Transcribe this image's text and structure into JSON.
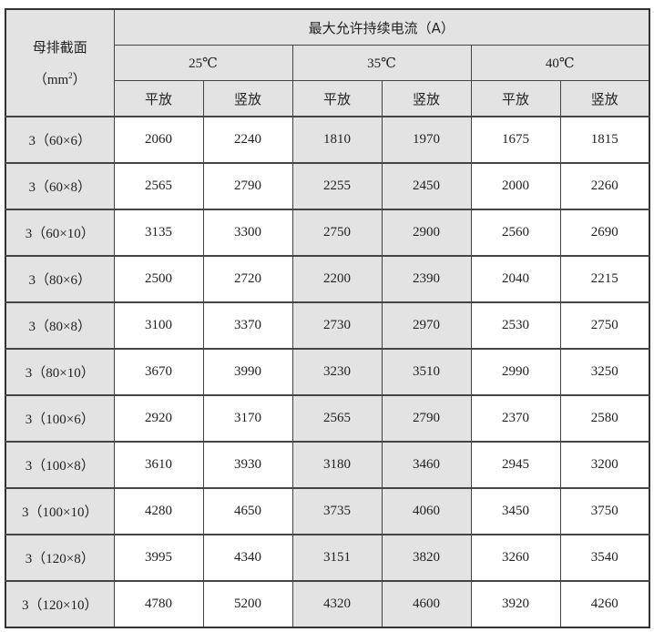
{
  "header": {
    "section_label": "母排截面",
    "section_unit_prefix": "（mm",
    "section_unit_sup": "2",
    "section_unit_suffix": "）",
    "main_title": "最大允许持续电流（A）",
    "temperatures": [
      "25℃",
      "35℃",
      "40℃"
    ],
    "orientations": [
      "平放",
      "竖放",
      "平放",
      "竖放",
      "平放",
      "竖放"
    ]
  },
  "shading_color": "#e3e3e3",
  "rows": [
    {
      "section": "3（60×6）",
      "values": [
        "2060",
        "2240",
        "1810",
        "1970",
        "1675",
        "1815"
      ]
    },
    {
      "section": "3（60×8）",
      "values": [
        "2565",
        "2790",
        "2255",
        "2450",
        "2000",
        "2260"
      ]
    },
    {
      "section": "3（60×10）",
      "values": [
        "3135",
        "3300",
        "2750",
        "2900",
        "2560",
        "2690"
      ]
    },
    {
      "section": "3（80×6）",
      "values": [
        "2500",
        "2720",
        "2200",
        "2390",
        "2040",
        "2215"
      ]
    },
    {
      "section": "3（80×8）",
      "values": [
        "3100",
        "3370",
        "2730",
        "2970",
        "2530",
        "2750"
      ]
    },
    {
      "section": "3（80×10）",
      "values": [
        "3670",
        "3990",
        "3230",
        "3510",
        "2990",
        "3250"
      ]
    },
    {
      "section": "3（100×6）",
      "values": [
        "2920",
        "3170",
        "2565",
        "2790",
        "2370",
        "2580"
      ]
    },
    {
      "section": "3（100×8）",
      "values": [
        "3610",
        "3930",
        "3180",
        "3460",
        "2945",
        "3200"
      ]
    },
    {
      "section": "3（100×10）",
      "values": [
        "4280",
        "4650",
        "3735",
        "4060",
        "3450",
        "3750"
      ]
    },
    {
      "section": "3（120×8）",
      "values": [
        "3995",
        "4340",
        "3151",
        "3820",
        "3260",
        "3540"
      ]
    },
    {
      "section": "3（120×10）",
      "values": [
        "4780",
        "5200",
        "4320",
        "4600",
        "3920",
        "4260"
      ]
    }
  ]
}
